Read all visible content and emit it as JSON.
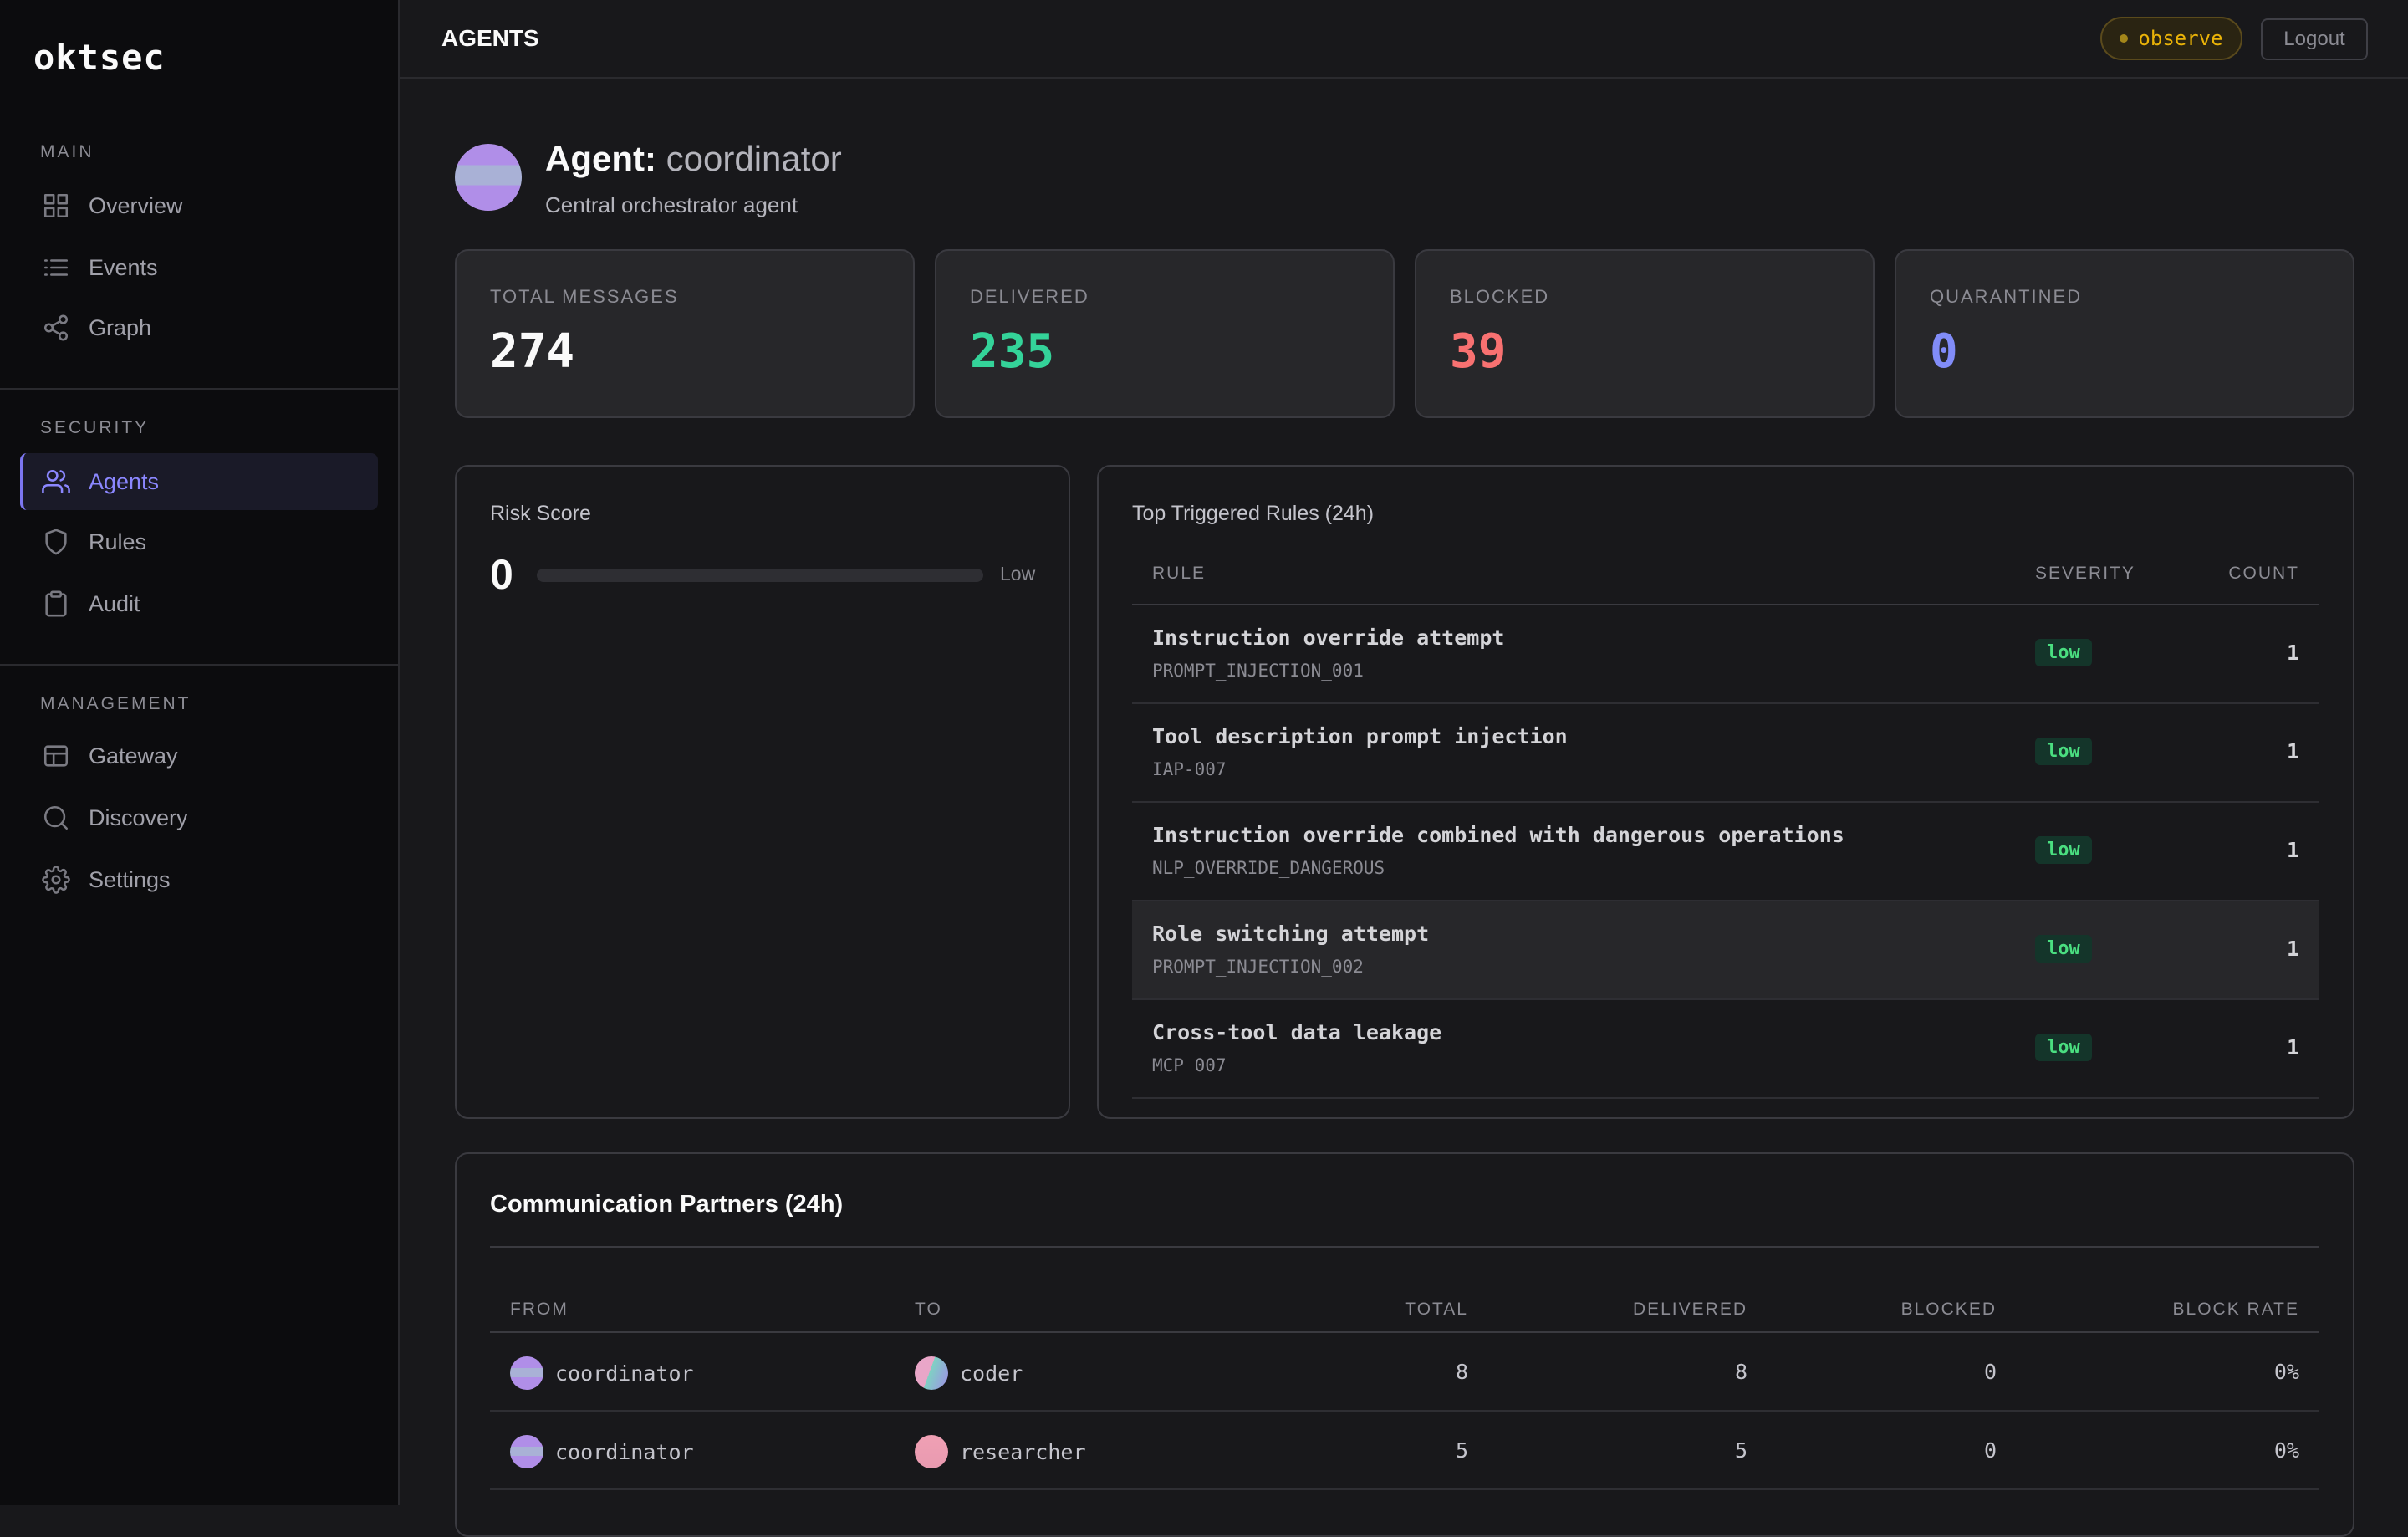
{
  "app": {
    "logo": "oktsec"
  },
  "sidebar": {
    "sections": [
      {
        "title": "MAIN",
        "items": [
          {
            "label": "Overview",
            "icon": "grid-icon"
          },
          {
            "label": "Events",
            "icon": "list-icon"
          },
          {
            "label": "Graph",
            "icon": "share-icon"
          }
        ]
      },
      {
        "title": "SECURITY",
        "items": [
          {
            "label": "Agents",
            "icon": "users-icon",
            "active": true
          },
          {
            "label": "Rules",
            "icon": "shield-icon"
          },
          {
            "label": "Audit",
            "icon": "clipboard-icon"
          }
        ]
      },
      {
        "title": "MANAGEMENT",
        "items": [
          {
            "label": "Gateway",
            "icon": "table-icon"
          },
          {
            "label": "Discovery",
            "icon": "search-icon"
          },
          {
            "label": "Settings",
            "icon": "gear-icon"
          }
        ]
      }
    ]
  },
  "header": {
    "title": "AGENTS",
    "mode": "observe",
    "logout_label": "Logout"
  },
  "agent": {
    "prefix": "Agent:",
    "name": "coordinator",
    "description": "Central orchestrator agent"
  },
  "stats": [
    {
      "label": "TOTAL MESSAGES",
      "value": "274",
      "color": "#fafafa"
    },
    {
      "label": "DELIVERED",
      "value": "235",
      "color": "#34d399"
    },
    {
      "label": "BLOCKED",
      "value": "39",
      "color": "#f87171"
    },
    {
      "label": "QUARANTINED",
      "value": "0",
      "color": "#818cf8"
    }
  ],
  "risk": {
    "title": "Risk Score",
    "value": "0",
    "level": "Low",
    "fill_fraction": 0
  },
  "rules": {
    "title": "Top Triggered Rules (24h)",
    "headers": {
      "rule": "RULE",
      "severity": "SEVERITY",
      "count": "COUNT"
    },
    "rows": [
      {
        "name": "Instruction override attempt",
        "id": "PROMPT_INJECTION_001",
        "severity": "low",
        "count": "1"
      },
      {
        "name": "Tool description prompt injection",
        "id": "IAP-007",
        "severity": "low",
        "count": "1"
      },
      {
        "name": "Instruction override combined with dangerous operations",
        "id": "NLP_OVERRIDE_DANGEROUS",
        "severity": "low",
        "count": "1"
      },
      {
        "name": "Role switching attempt",
        "id": "PROMPT_INJECTION_002",
        "severity": "low",
        "count": "1"
      },
      {
        "name": "Cross-tool data leakage",
        "id": "MCP_007",
        "severity": "low",
        "count": "1"
      }
    ]
  },
  "partners": {
    "title": "Communication Partners (24h)",
    "headers": {
      "from": "FROM",
      "to": "TO",
      "total": "TOTAL",
      "delivered": "DELIVERED",
      "blocked": "BLOCKED",
      "block_rate": "BLOCK RATE"
    },
    "rows": [
      {
        "from": "coordinator",
        "to": "coder",
        "total": "8",
        "delivered": "8",
        "blocked": "0",
        "block_rate": "0%"
      },
      {
        "from": "coordinator",
        "to": "researcher",
        "total": "5",
        "delivered": "5",
        "blocked": "0",
        "block_rate": "0%"
      }
    ]
  }
}
